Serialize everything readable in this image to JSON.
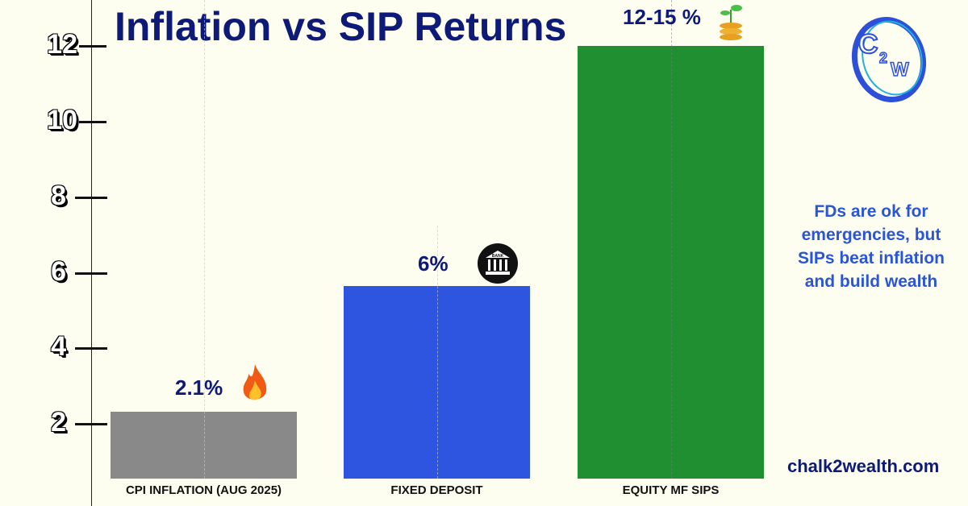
{
  "chart_data": {
    "type": "bar",
    "title": "Inflation vs SIP Returns",
    "categories": [
      "CPI INFLATION (AUG 2025)",
      "FIXED DEPOSIT",
      "EQUITY MF SIPS"
    ],
    "values": [
      2.1,
      6,
      12
    ],
    "data_labels": [
      "2.1%",
      "6%",
      "12-15 %"
    ],
    "colors": [
      "#898989",
      "#2d55e0",
      "#1f8f32"
    ],
    "yticks": [
      "2",
      "4",
      "6",
      "8",
      "10",
      "12"
    ],
    "ylim": [
      0,
      12
    ],
    "grid": false,
    "xlabel": "",
    "ylabel": ""
  },
  "note": "FDs are ok for emergencies, but SIPs beat inflation and build wealth",
  "website": "chalk2wealth.com",
  "logo_text": "C2W"
}
